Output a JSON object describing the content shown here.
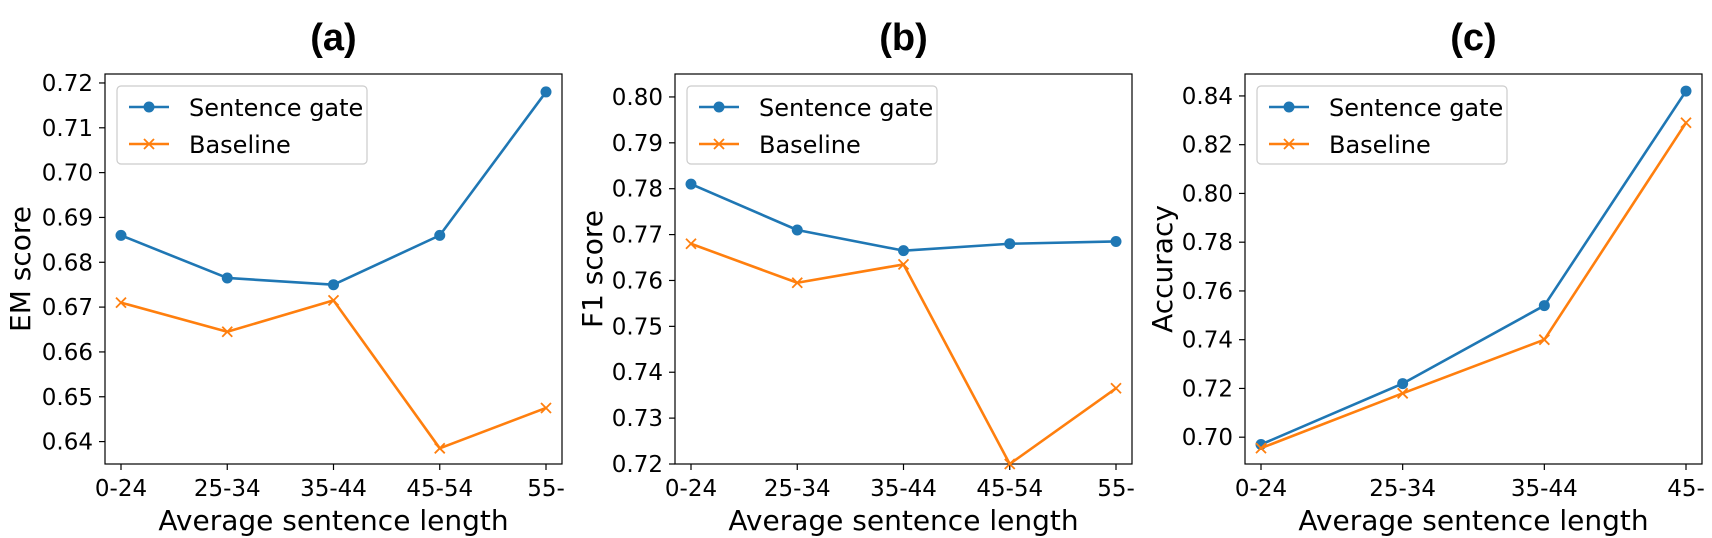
{
  "chart_data": [
    {
      "type": "line",
      "title": "(a)",
      "xlabel": "Average sentence length",
      "ylabel": "EM score",
      "categories": [
        "0-24",
        "25-34",
        "35-44",
        "45-54",
        "55-"
      ],
      "ylim": [
        0.635,
        0.722
      ],
      "yticks": [
        0.64,
        0.65,
        0.66,
        0.67,
        0.68,
        0.69,
        0.7,
        0.71,
        0.72
      ],
      "legend": "top-left",
      "grid": false,
      "series": [
        {
          "name": "Sentence gate",
          "color": "#1f77b4",
          "marker": "circle",
          "values": [
            0.686,
            0.6765,
            0.675,
            0.686,
            0.718
          ]
        },
        {
          "name": "Baseline",
          "color": "#ff7f0e",
          "marker": "x",
          "values": [
            0.671,
            0.6645,
            0.6715,
            0.6385,
            0.6475
          ]
        }
      ]
    },
    {
      "type": "line",
      "title": "(b)",
      "xlabel": "Average sentence length",
      "ylabel": "F1 score",
      "categories": [
        "0-24",
        "25-34",
        "35-44",
        "45-54",
        "55-"
      ],
      "ylim": [
        0.72,
        0.805
      ],
      "yticks": [
        0.72,
        0.73,
        0.74,
        0.75,
        0.76,
        0.77,
        0.78,
        0.79,
        0.8
      ],
      "legend": "top-left",
      "grid": false,
      "series": [
        {
          "name": "Sentence gate",
          "color": "#1f77b4",
          "marker": "circle",
          "values": [
            0.781,
            0.771,
            0.7665,
            0.768,
            0.7685
          ]
        },
        {
          "name": "Baseline",
          "color": "#ff7f0e",
          "marker": "x",
          "values": [
            0.768,
            0.7595,
            0.7635,
            0.72,
            0.7365
          ]
        }
      ]
    },
    {
      "type": "line",
      "title": "(c)",
      "xlabel": "Average sentence length",
      "ylabel": "Accuracy",
      "categories": [
        "0-24",
        "25-34",
        "35-44",
        "45-"
      ],
      "ylim": [
        0.689,
        0.849
      ],
      "yticks": [
        0.7,
        0.72,
        0.74,
        0.76,
        0.78,
        0.8,
        0.82,
        0.84
      ],
      "legend": "top-left",
      "grid": false,
      "series": [
        {
          "name": "Sentence gate",
          "color": "#1f77b4",
          "marker": "circle",
          "values": [
            0.697,
            0.722,
            0.754,
            0.842
          ]
        },
        {
          "name": "Baseline",
          "color": "#ff7f0e",
          "marker": "x",
          "values": [
            0.6955,
            0.718,
            0.74,
            0.829
          ]
        }
      ]
    }
  ]
}
